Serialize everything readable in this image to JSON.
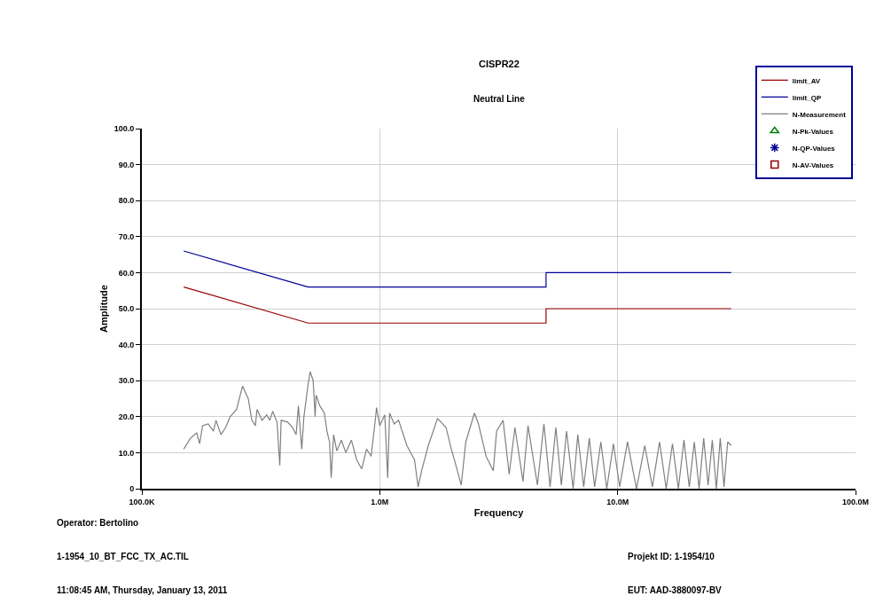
{
  "chart_data": {
    "type": "line",
    "title": "CISPR22",
    "subtitle": "Neutral Line",
    "xlabel": "Frequency",
    "ylabel": "Amplitude",
    "log": "x",
    "grid": true,
    "legend": "top right",
    "xlim": [
      100000,
      100000000
    ],
    "xticks": [
      {
        "value": 100000,
        "label": "100.0K"
      },
      {
        "value": 1000000,
        "label": "1.0M"
      },
      {
        "value": 10000000,
        "label": "10.0M"
      },
      {
        "value": 100000000,
        "label": "100.0M"
      }
    ],
    "ylim": [
      0,
      100
    ],
    "yticks": [
      0,
      {
        "value": 10,
        "label": "10.0"
      },
      {
        "value": 20,
        "label": "20.0"
      },
      {
        "value": 30,
        "label": "30.0"
      },
      {
        "value": 40,
        "label": "40.0"
      },
      {
        "value": 50,
        "label": "50.0"
      },
      {
        "value": 60,
        "label": "60.0"
      },
      {
        "value": 70,
        "label": "70.0"
      },
      {
        "value": 80,
        "label": "80.0"
      },
      {
        "value": 90,
        "label": "90.0"
      },
      {
        "value": 100,
        "label": "100.0"
      }
    ],
    "series": [
      {
        "name": "limit_AV",
        "color": "#990000",
        "x": [
          150000,
          500000,
          5000000,
          5000000,
          30000000
        ],
        "values": [
          56,
          46,
          46,
          50,
          50
        ]
      },
      {
        "name": "limit_QP",
        "color": "#000099",
        "x": [
          150000,
          500000,
          5000000,
          5000000,
          30000000
        ],
        "values": [
          66,
          56,
          56,
          60,
          60
        ]
      },
      {
        "name": "N-Measurement",
        "color": "#808080",
        "x": [
          150000,
          160000,
          170000,
          175000,
          180000,
          190000,
          200000,
          205000,
          215000,
          225000,
          235000,
          250000,
          265000,
          280000,
          290000,
          300000,
          305000,
          320000,
          335000,
          345000,
          355000,
          370000,
          380000,
          385000,
          410000,
          430000,
          445000,
          455000,
          470000,
          480000,
          500000,
          510000,
          525000,
          535000,
          540000,
          560000,
          585000,
          600000,
          615000,
          625000,
          640000,
          660000,
          690000,
          720000,
          760000,
          800000,
          840000,
          880000,
          920000,
          950000,
          970000,
          1000000,
          1050000,
          1080000,
          1100000,
          1150000,
          1200000,
          1300000,
          1400000,
          1450000,
          1500000,
          1600000,
          1750000,
          1900000,
          2000000,
          2100000,
          2200000,
          2300000,
          2500000,
          2600000,
          2800000,
          3000000,
          3100000,
          3300000,
          3500000,
          3700000,
          4000000,
          4200000,
          4600000,
          4900000,
          5200000,
          5500000,
          5800000,
          6100000,
          6500000,
          6800000,
          7200000,
          7600000,
          8000000,
          8500000,
          9000000,
          9600000,
          10200000,
          11000000,
          12000000,
          13000000,
          14000000,
          15000000,
          16000000,
          17000000,
          18000000,
          19000000,
          20000000,
          21000000,
          22000000,
          23000000,
          24000000,
          25000000,
          26000000,
          27000000,
          28000000,
          29000000,
          30000000
        ],
        "values": [
          11,
          14,
          15.5,
          12.5,
          17.5,
          18,
          16,
          19,
          15,
          17,
          20,
          22,
          28.5,
          25,
          19,
          17.5,
          22,
          19,
          20.5,
          19,
          21.5,
          18.5,
          6.5,
          19,
          18.5,
          17,
          15,
          23,
          11,
          20,
          29,
          32.5,
          30,
          20,
          26,
          23,
          21,
          16,
          13,
          3,
          15,
          10.5,
          13.5,
          10,
          13.5,
          8,
          5.5,
          11,
          9,
          17,
          22.5,
          17.5,
          20.5,
          3,
          21,
          18,
          19,
          12,
          8,
          0.5,
          5,
          12,
          19.5,
          17,
          11,
          6,
          1,
          13,
          21,
          18,
          9,
          5,
          16,
          19,
          4,
          17,
          2,
          17.5,
          1,
          18,
          0.5,
          17,
          1,
          16,
          0,
          15,
          0.5,
          14,
          0.5,
          13,
          0,
          12.5,
          0.5,
          13,
          0,
          12,
          0.5,
          13,
          0,
          12.5,
          0,
          13.5,
          0.5,
          13,
          0,
          14,
          1,
          13.5,
          0,
          14,
          0.5,
          13,
          12
        ]
      },
      {
        "name": "N-Pk-Values",
        "type": "scatter",
        "marker": "triangle",
        "color": "#008000"
      },
      {
        "name": "N-QP-Values",
        "type": "scatter",
        "marker": "cross",
        "color": "#000099"
      },
      {
        "name": "N-AV-Values",
        "type": "scatter",
        "marker": "square",
        "color": "#990000"
      }
    ],
    "annotations": [
      "Operator: Bertolino",
      "1-1954_10_BT_FCC_TX_AC.TIL",
      "11:08:45 AM, Thursday, January 13, 2011",
      "Projekt ID: 1-1954/10",
      "EUT: AAD-3880097-BV"
    ]
  }
}
